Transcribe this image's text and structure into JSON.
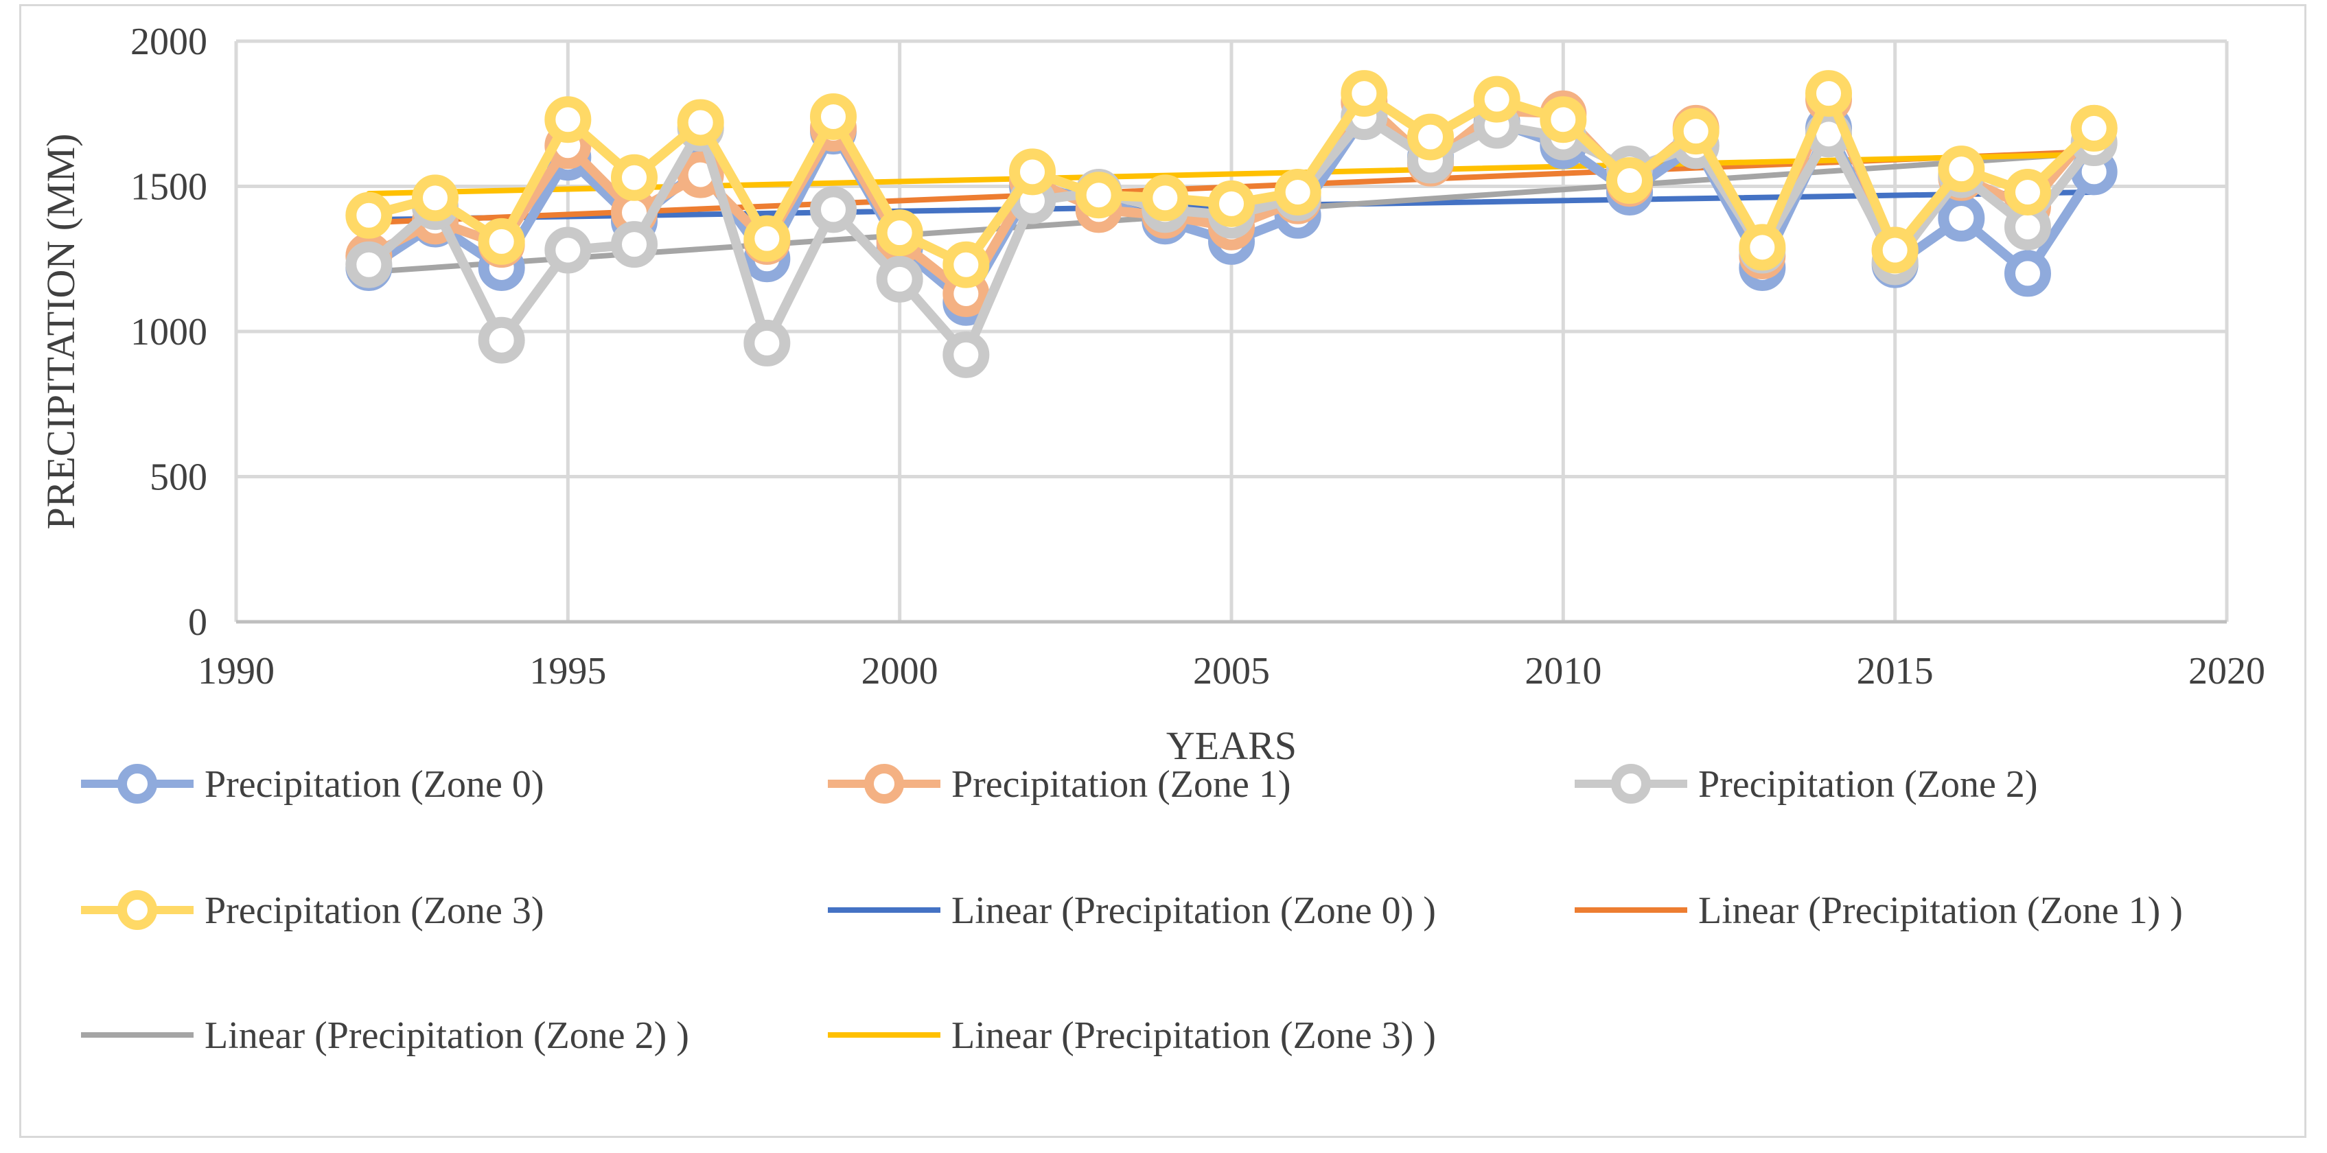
{
  "chart_data": {
    "type": "line",
    "title": "",
    "xlabel": "YEARS",
    "ylabel": "PRECIPITATION (MM)",
    "xlim": [
      1990,
      2020
    ],
    "ylim": [
      0,
      2000
    ],
    "x_ticks": [
      "1990",
      "1995",
      "2000",
      "2005",
      "2010",
      "2015",
      "2020"
    ],
    "y_ticks": [
      "0",
      "500",
      "1000",
      "1500",
      "2000"
    ],
    "grid": true,
    "legend_position": "bottom",
    "x": [
      1992,
      1993,
      1994,
      1995,
      1996,
      1997,
      1998,
      1999,
      2000,
      2001,
      2002,
      2003,
      2004,
      2005,
      2006,
      2007,
      2008,
      2009,
      2010,
      2011,
      2012,
      2013,
      2014,
      2015,
      2016,
      2017,
      2018
    ],
    "series": [
      {
        "name": "Precipitation (Zone 0)",
        "color": "#8faadc",
        "values": [
          1220,
          1370,
          1220,
          1600,
          1380,
          1560,
          1250,
          1690,
          1290,
          1100,
          1500,
          1450,
          1380,
          1310,
          1400,
          1740,
          1600,
          1720,
          1640,
          1480,
          1640,
          1220,
          1700,
          1230,
          1390,
          1200,
          1550
        ]
      },
      {
        "name": "Precipitation (Zone 1)",
        "color": "#f4b183",
        "values": [
          1260,
          1380,
          1300,
          1640,
          1410,
          1540,
          1310,
          1700,
          1310,
          1130,
          1520,
          1420,
          1400,
          1360,
          1450,
          1790,
          1580,
          1760,
          1750,
          1510,
          1700,
          1260,
          1800,
          1280,
          1530,
          1430,
          1700
        ]
      },
      {
        "name": "Precipitation (Zone 2)",
        "color": "#c9c9c9",
        "values": [
          1230,
          1430,
          970,
          1280,
          1300,
          1700,
          960,
          1420,
          1180,
          920,
          1450,
          1480,
          1420,
          1400,
          1460,
          1740,
          1590,
          1710,
          1670,
          1560,
          1640,
          1280,
          1680,
          1240,
          1540,
          1360,
          1650
        ]
      },
      {
        "name": "Precipitation (Zone 3)",
        "color": "#ffd966",
        "values": [
          1400,
          1460,
          1310,
          1730,
          1530,
          1720,
          1320,
          1740,
          1340,
          1230,
          1550,
          1470,
          1460,
          1440,
          1480,
          1820,
          1670,
          1800,
          1730,
          1520,
          1690,
          1290,
          1820,
          1280,
          1560,
          1480,
          1700
        ]
      }
    ],
    "trendlines": [
      {
        "name": "Linear (Precipitation (Zone 0) )",
        "color": "#4472c4",
        "x": [
          1992,
          2018
        ],
        "values": [
          1385,
          1480
        ]
      },
      {
        "name": "Linear (Precipitation (Zone 1) )",
        "color": "#ed7d31",
        "x": [
          1992,
          2018
        ],
        "values": [
          1375,
          1620
        ]
      },
      {
        "name": "Linear (Precipitation (Zone 2) )",
        "color": "#a5a5a5",
        "x": [
          1992,
          2018
        ],
        "values": [
          1205,
          1615
        ]
      },
      {
        "name": "Linear (Precipitation (Zone 3) )",
        "color": "#ffc000",
        "x": [
          1992,
          2018
        ],
        "values": [
          1475,
          1610
        ]
      }
    ]
  }
}
